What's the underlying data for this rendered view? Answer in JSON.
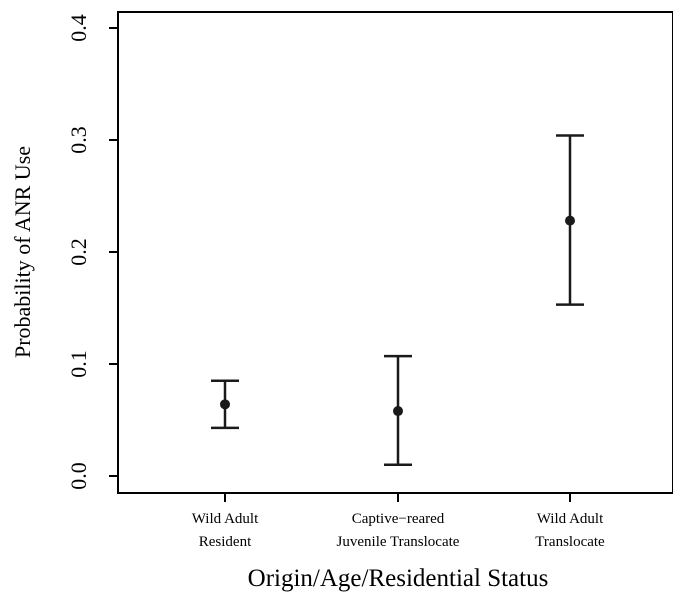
{
  "chart_data": {
    "type": "scatter",
    "subtype": "point-with-error-bars",
    "title": "",
    "xlabel": "Origin/Age/Residential Status",
    "ylabel": "Probability of ANR Use",
    "categories": [
      [
        "Wild Adult",
        "Resident"
      ],
      [
        "Captive−reared",
        "Juvenile Translocate"
      ],
      [
        "Wild Adult",
        "Translocate"
      ]
    ],
    "points": [
      {
        "estimate": 0.064,
        "lower": 0.043,
        "upper": 0.085
      },
      {
        "estimate": 0.058,
        "lower": 0.01,
        "upper": 0.107
      },
      {
        "estimate": 0.228,
        "lower": 0.153,
        "upper": 0.304
      }
    ],
    "ylim": [
      0.0,
      0.4
    ],
    "yticks": [
      "0.0",
      "0.1",
      "0.2",
      "0.3",
      "0.4"
    ],
    "grid": false,
    "legend": "none",
    "colors": {
      "mark": "#1a1a1a",
      "axis": "#000000"
    }
  }
}
